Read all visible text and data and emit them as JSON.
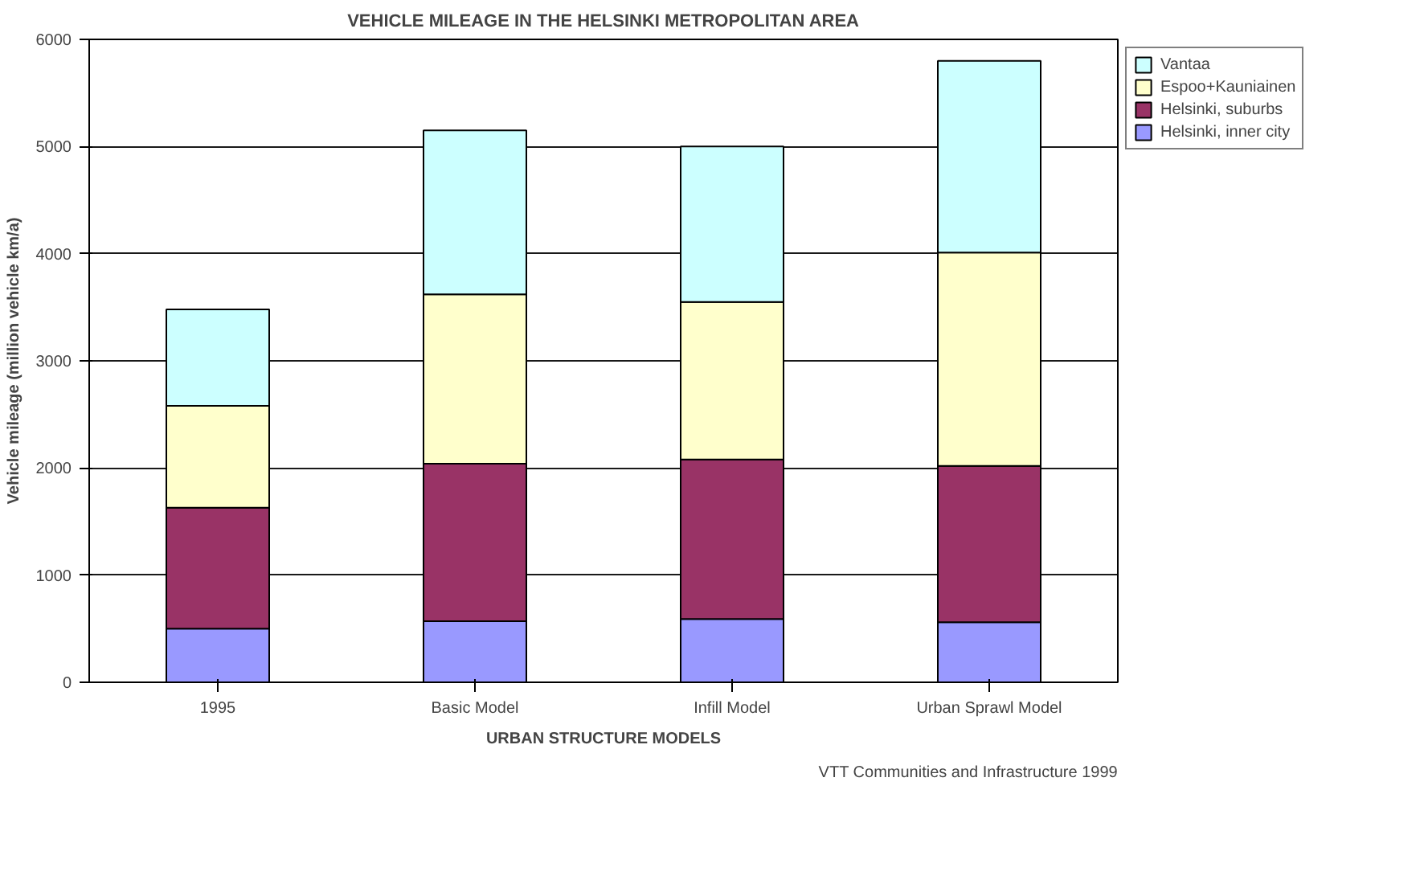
{
  "chart_data": {
    "type": "bar",
    "stacked": true,
    "title": "VEHICLE MILEAGE IN THE HELSINKI METROPOLITAN AREA",
    "xlabel": "URBAN STRUCTURE MODELS",
    "ylabel": "Vehicle mileage (million vehicle km/a)",
    "categories": [
      "1995",
      "Basic Model",
      "Infill Model",
      "Urban Sprawl Model"
    ],
    "series": [
      {
        "name": "Helsinki, inner city",
        "color": "#9999ff",
        "values": [
          500,
          570,
          590,
          560
        ]
      },
      {
        "name": "Helsinki, suburbs",
        "color": "#993366",
        "values": [
          1130,
          1470,
          1490,
          1460
        ]
      },
      {
        "name": "Espoo+Kauniainen",
        "color": "#ffffcc",
        "values": [
          950,
          1580,
          1470,
          1990
        ]
      },
      {
        "name": "Vantaa",
        "color": "#ccffff",
        "values": [
          900,
          1530,
          1450,
          1790
        ]
      }
    ],
    "ylim": [
      0,
      6000
    ],
    "yticks": [
      0,
      1000,
      2000,
      3000,
      4000,
      5000,
      6000
    ],
    "grid": "y",
    "legend": "right",
    "annotations": [
      "VTT Communities and Infrastructure 1999"
    ]
  }
}
